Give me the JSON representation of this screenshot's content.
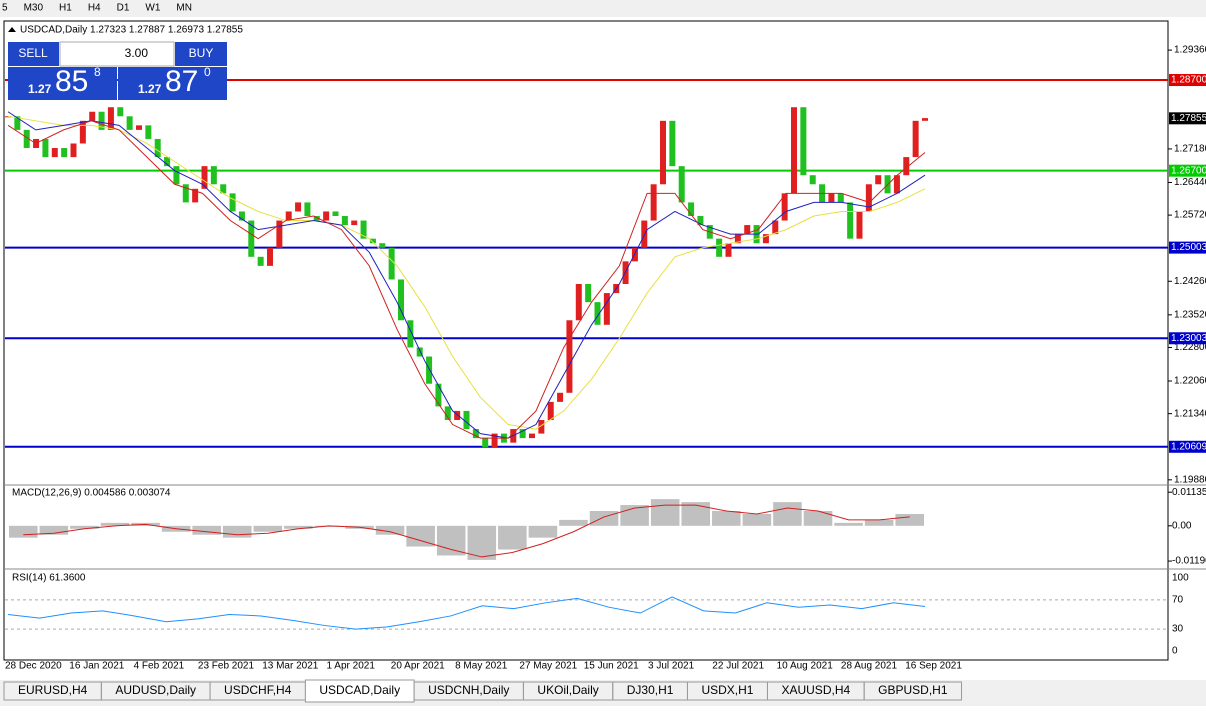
{
  "toolbar": {
    "timeframes": [
      "5",
      "M30",
      "H1",
      "H4",
      "D1",
      "W1",
      "MN"
    ]
  },
  "chart_window": {
    "header": "USDCAD,Daily  1.27323 1.27887 1.26973 1.27855",
    "trade_panel": {
      "sell": "SELL",
      "buy": "BUY",
      "volume": "3.00",
      "sell_big": "1.27",
      "sell_pips": "85",
      "sell_frac": "8",
      "buy_big": "1.27",
      "buy_pips": "87",
      "buy_frac": "0"
    },
    "price_chart": {
      "ylim": [
        1.1981,
        1.2998
      ],
      "yticks": [
        {
          "value": 1.2936,
          "label": "1.29360"
        },
        {
          "value": 1.2718,
          "label": "1.27180"
        },
        {
          "value": 1.2644,
          "label": "1.26440"
        },
        {
          "value": 1.2572,
          "label": "1.25720"
        },
        {
          "value": 1.2426,
          "label": "1.24260"
        },
        {
          "value": 1.2352,
          "label": "1.23520"
        },
        {
          "value": 1.228,
          "label": "1.22800"
        },
        {
          "value": 1.2206,
          "label": "1.22060"
        },
        {
          "value": 1.2134,
          "label": "1.21340"
        },
        {
          "value": 1.1988,
          "label": "1.19880"
        }
      ],
      "closes": [
        1.279,
        1.276,
        1.272,
        1.274,
        1.27,
        1.272,
        1.27,
        1.273,
        1.278,
        1.28,
        1.276,
        1.281,
        1.279,
        1.276,
        1.277,
        1.274,
        1.27,
        1.268,
        1.264,
        1.26,
        1.263,
        1.268,
        1.264,
        1.262,
        1.258,
        1.256,
        1.248,
        1.246,
        1.25,
        1.256,
        1.258,
        1.26,
        1.257,
        1.256,
        1.258,
        1.257,
        1.255,
        1.256,
        1.252,
        1.251,
        1.25,
        1.243,
        1.234,
        1.228,
        1.226,
        1.22,
        1.215,
        1.212,
        1.214,
        1.21,
        1.208,
        1.206,
        1.209,
        1.207,
        1.21,
        1.208,
        1.209,
        1.212,
        1.216,
        1.218,
        1.234,
        1.242,
        1.238,
        1.233,
        1.24,
        1.242,
        1.247,
        1.25,
        1.256,
        1.264,
        1.278,
        1.268,
        1.26,
        1.257,
        1.255,
        1.252,
        1.248,
        1.251,
        1.253,
        1.255,
        1.251,
        1.253,
        1.256,
        1.262,
        1.281,
        1.266,
        1.264,
        1.26,
        1.262,
        1.26,
        1.252,
        1.258,
        1.264,
        1.266,
        1.262,
        1.266,
        1.27,
        1.278,
        1.2786
      ],
      "ma_fast": [
        1.277,
        1.273,
        1.276,
        1.278,
        1.276,
        1.27,
        1.264,
        1.262,
        1.256,
        1.252,
        1.256,
        1.257,
        1.254,
        1.246,
        1.232,
        1.22,
        1.211,
        1.208,
        1.208,
        1.214,
        1.228,
        1.238,
        1.246,
        1.262,
        1.262,
        1.254,
        1.252,
        1.254,
        1.262,
        1.262,
        1.262,
        1.26,
        1.266,
        1.271
      ],
      "ma_mid": [
        1.28,
        1.276,
        1.277,
        1.278,
        1.277,
        1.272,
        1.267,
        1.264,
        1.258,
        1.254,
        1.255,
        1.256,
        1.255,
        1.249,
        1.238,
        1.225,
        1.214,
        1.209,
        1.208,
        1.211,
        1.222,
        1.233,
        1.242,
        1.254,
        1.258,
        1.255,
        1.253,
        1.253,
        1.258,
        1.26,
        1.26,
        1.259,
        1.262,
        1.266
      ],
      "ma_slow": [
        1.279,
        1.278,
        1.277,
        1.277,
        1.276,
        1.273,
        1.269,
        1.265,
        1.261,
        1.258,
        1.256,
        1.256,
        1.255,
        1.252,
        1.246,
        1.237,
        1.226,
        1.217,
        1.211,
        1.21,
        1.214,
        1.221,
        1.23,
        1.24,
        1.248,
        1.25,
        1.251,
        1.252,
        1.254,
        1.257,
        1.258,
        1.258,
        1.26,
        1.263
      ],
      "hlines": [
        {
          "value": 1.287,
          "label": "1.28700",
          "color": "#e00000"
        },
        {
          "value": 1.267,
          "label": "1.26700",
          "color": "#00cc00"
        },
        {
          "value": 1.25003,
          "label": "1.25003",
          "color": "#0000cc"
        },
        {
          "value": 1.23003,
          "label": "1.23003",
          "color": "#0000cc"
        },
        {
          "value": 1.20609,
          "label": "1.20609",
          "color": "#0000cc"
        }
      ],
      "current_price": {
        "value": 1.27855,
        "label": "1.27855"
      },
      "dates": [
        "28 Dec 2020",
        "16 Jan 2021",
        "4 Feb 2021",
        "23 Feb 2021",
        "13 Mar 2021",
        "1 Apr 2021",
        "20 Apr 2021",
        "8 May 2021",
        "27 May 2021",
        "15 Jun 2021",
        "3 Jul 2021",
        "22 Jul 2021",
        "10 Aug 2021",
        "28 Aug 2021",
        "16 Sep 2021"
      ]
    },
    "macd": {
      "label": "MACD(12,26,9) 0.004586 0.003074",
      "ylim": [
        -0.0139,
        0.0131
      ],
      "yticks": [
        {
          "value": 0.01135,
          "label": "0.01135"
        },
        {
          "value": 0,
          "label": "0.00"
        },
        {
          "value": -0.0119,
          "label": "-0.01190"
        }
      ],
      "histogram": [
        -0.004,
        -0.003,
        -0.001,
        0.001,
        0.001,
        -0.002,
        -0.003,
        -0.004,
        -0.002,
        -0.001,
        0,
        -0.001,
        -0.003,
        -0.007,
        -0.01,
        -0.0115,
        -0.008,
        -0.004,
        0.002,
        0.005,
        0.007,
        0.009,
        0.008,
        0.005,
        0.004,
        0.008,
        0.005,
        0.001,
        0.002,
        0.004
      ],
      "signal": [
        -0.003,
        -0.0025,
        -0.001,
        0,
        0.0005,
        -0.001,
        -0.002,
        -0.003,
        -0.0025,
        -0.001,
        0,
        -0.0005,
        -0.002,
        -0.005,
        -0.008,
        -0.0105,
        -0.009,
        -0.006,
        -0.002,
        0.003,
        0.006,
        0.007,
        0.007,
        0.005,
        0.004,
        0.006,
        0.005,
        0.002,
        0.002,
        0.003
      ]
    },
    "rsi": {
      "label": "RSI(14) 61.3600",
      "ylim": [
        -9.6,
        108.2
      ],
      "yticks": [
        100,
        70,
        30,
        0
      ],
      "values": [
        50,
        45,
        52,
        55,
        48,
        40,
        44,
        50,
        48,
        42,
        35,
        30,
        33,
        40,
        48,
        62,
        58,
        66,
        72,
        60,
        52,
        74,
        55,
        52,
        66,
        60,
        63,
        58,
        66,
        61
      ]
    }
  },
  "tabs": [
    "EURUSD,H4",
    "AUDUSD,Daily",
    "USDCHF,H4",
    "USDCAD,Daily",
    "USDCNH,Daily",
    "UKOil,Daily",
    "DJ30,H1",
    "USDX,H1",
    "XAUUSD,H4",
    "GBPUSD,H1"
  ]
}
